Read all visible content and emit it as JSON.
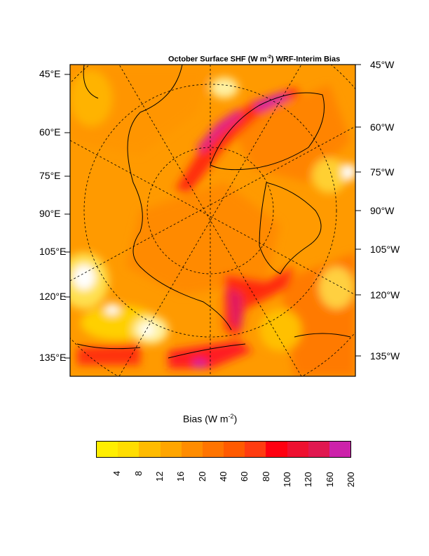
{
  "map": {
    "title_main": "October Surface SHF (W m",
    "title_sup": "-2",
    "title_tail": ") WRF-Interim Bias",
    "left_labels": [
      "45°E",
      "60°E",
      "75°E",
      "90°E",
      "105°E",
      "120°E",
      "135°E"
    ],
    "right_labels": [
      "45°W",
      "60°W",
      "75°W",
      "90°W",
      "105°W",
      "120°W",
      "135°W"
    ]
  },
  "colorbar": {
    "title_main": "Bias (W m",
    "title_sup": "-2",
    "title_tail": ")",
    "ticks": [
      "4",
      "8",
      "12",
      "16",
      "20",
      "40",
      "60",
      "80",
      "100",
      "120",
      "160",
      "200"
    ],
    "colors": [
      "#ffee00",
      "#ffdd00",
      "#ffbb00",
      "#ffa500",
      "#ff8c00",
      "#ff7400",
      "#ff5a00",
      "#ff3c10",
      "#ff0010",
      "#ee1030",
      "#e01850",
      "#cc22aa"
    ]
  }
}
